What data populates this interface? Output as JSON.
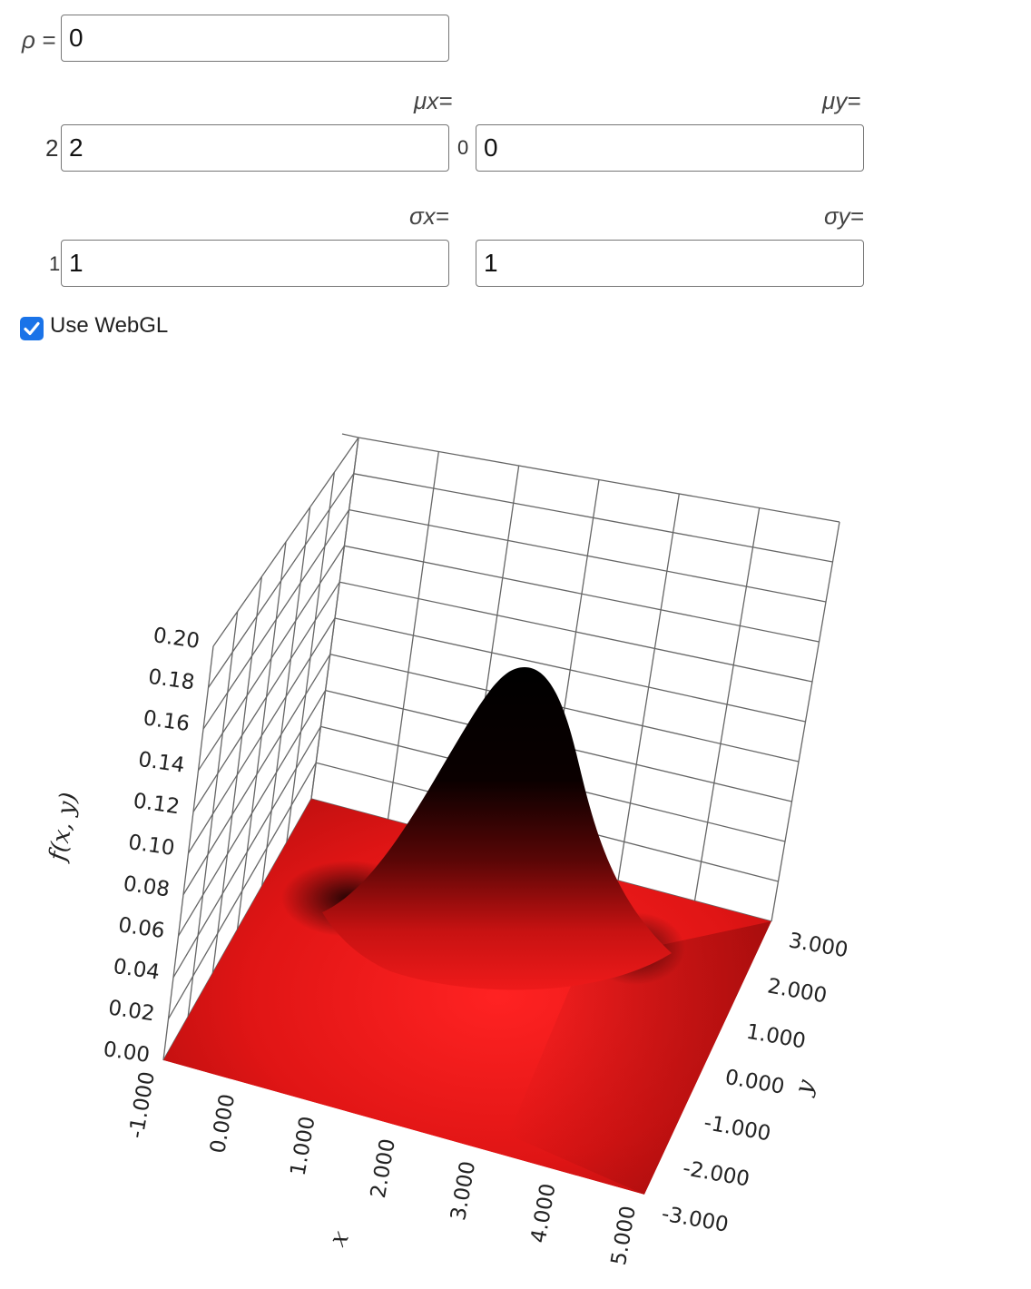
{
  "controls": {
    "rho_label": "ρ =",
    "rho_value": "0",
    "mu_x_label": "μx=",
    "mu_y_label": "μy=",
    "mu_x_slider_value": "2",
    "mu_x_value": "2",
    "mu_y_slider_value": "0",
    "mu_y_value": "0",
    "sigma_x_label": "σx=",
    "sigma_y_label": "σy=",
    "sigma_x_slider_value": "1",
    "sigma_x_value": "1",
    "sigma_y_value": "1",
    "webgl_label": "Use WebGL",
    "webgl_checked": true
  },
  "chart_data": {
    "type": "surface",
    "function": "bivariate normal density",
    "params": {
      "mu_x": 2,
      "mu_y": 0,
      "sigma_x": 1,
      "sigma_y": 1,
      "rho": 0
    },
    "xlabel": "x",
    "ylabel": "y",
    "zlabel": "f(x, y)",
    "xlim": [
      -1,
      5
    ],
    "ylim": [
      -3,
      3
    ],
    "zlim": [
      0,
      0.2
    ],
    "x_ticks": [
      "-1.000",
      "0.000",
      "1.000",
      "2.000",
      "3.000",
      "4.000",
      "5.000"
    ],
    "y_ticks": [
      "-3.000",
      "-2.000",
      "-1.000",
      "0.000",
      "1.000",
      "2.000",
      "3.000"
    ],
    "z_ticks": [
      "0.00",
      "0.02",
      "0.04",
      "0.06",
      "0.08",
      "0.10",
      "0.12",
      "0.14",
      "0.16",
      "0.18",
      "0.20"
    ],
    "surface_color": "#f01818",
    "shade_color": "#000000",
    "grid_color": "#666666"
  }
}
